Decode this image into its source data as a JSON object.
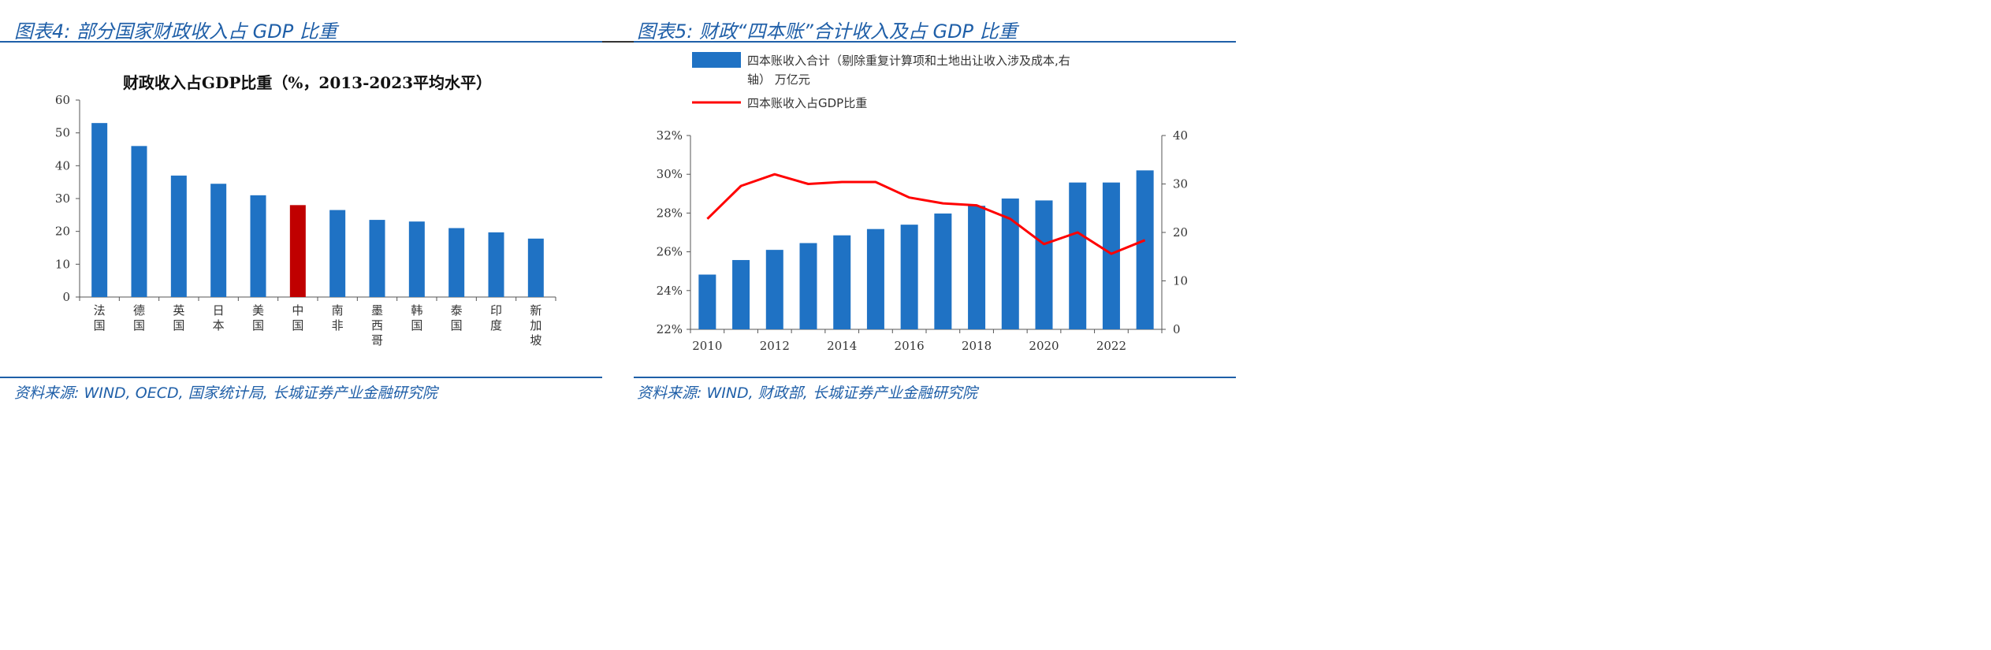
{
  "left_panel": {
    "title": "图表4: 部分国家财政收入占 GDP 比重",
    "source": "资料来源: WIND, OECD, 国家统计局, 长城证券产业金融研究院"
  },
  "right_panel": {
    "title": "图表5: 财政“四本账”合计收入及占 GDP 比重",
    "source": "资料来源: WIND, 财政部, 长城证券产业金融研究院"
  },
  "colors": {
    "bar_blue": "#1f72c4",
    "highlight_red": "#c00000",
    "line_red": "#ff0000",
    "header_blue": "#1f5fa8"
  },
  "chart_data": [
    {
      "type": "bar",
      "title": "财政收入占GDP比重（%，2013-2023平均水平）",
      "categories": [
        "法国",
        "德国",
        "英国",
        "日本",
        "美国",
        "中国",
        "南非",
        "墨西哥",
        "韩国",
        "泰国",
        "印度",
        "新加坡"
      ],
      "values": [
        53,
        46,
        37,
        34.5,
        31,
        28,
        26.5,
        23.5,
        23,
        21,
        19.7,
        17.8
      ],
      "highlight": "中国",
      "ylim": [
        0,
        60
      ],
      "yticks": [
        0,
        10,
        20,
        30,
        40,
        50,
        60
      ],
      "grid": false,
      "legend": "none"
    },
    {
      "type": "bar+line",
      "title": "",
      "x": [
        2010,
        2011,
        2012,
        2013,
        2014,
        2015,
        2016,
        2017,
        2018,
        2019,
        2020,
        2021,
        2022,
        2023
      ],
      "xticks": [
        "2010",
        "2012",
        "2014",
        "2016",
        "2018",
        "2020",
        "2022"
      ],
      "series": [
        {
          "name": "四本账收入合计（剔除重复计算项和土地出让收入涉及成本,右轴） 万亿元",
          "type": "bar",
          "axis": "right",
          "values": [
            11.3,
            14.3,
            16.4,
            17.8,
            19.4,
            20.7,
            21.6,
            23.9,
            25.5,
            27.0,
            26.6,
            30.3,
            30.3,
            32.8
          ]
        },
        {
          "name": "四本账收入占GDP比重",
          "type": "line",
          "axis": "left",
          "values": [
            27.7,
            29.4,
            30.0,
            29.5,
            29.6,
            29.6,
            28.8,
            28.5,
            28.4,
            27.7,
            26.4,
            27.0,
            25.9,
            26.6
          ]
        }
      ],
      "ylim_left": [
        22,
        32
      ],
      "yticks_left": [
        "22%",
        "24%",
        "26%",
        "28%",
        "30%",
        "32%"
      ],
      "ylim_right": [
        0,
        40
      ],
      "yticks_right": [
        "0",
        "10",
        "20",
        "30",
        "40"
      ],
      "grid": false,
      "legend": "top"
    }
  ]
}
